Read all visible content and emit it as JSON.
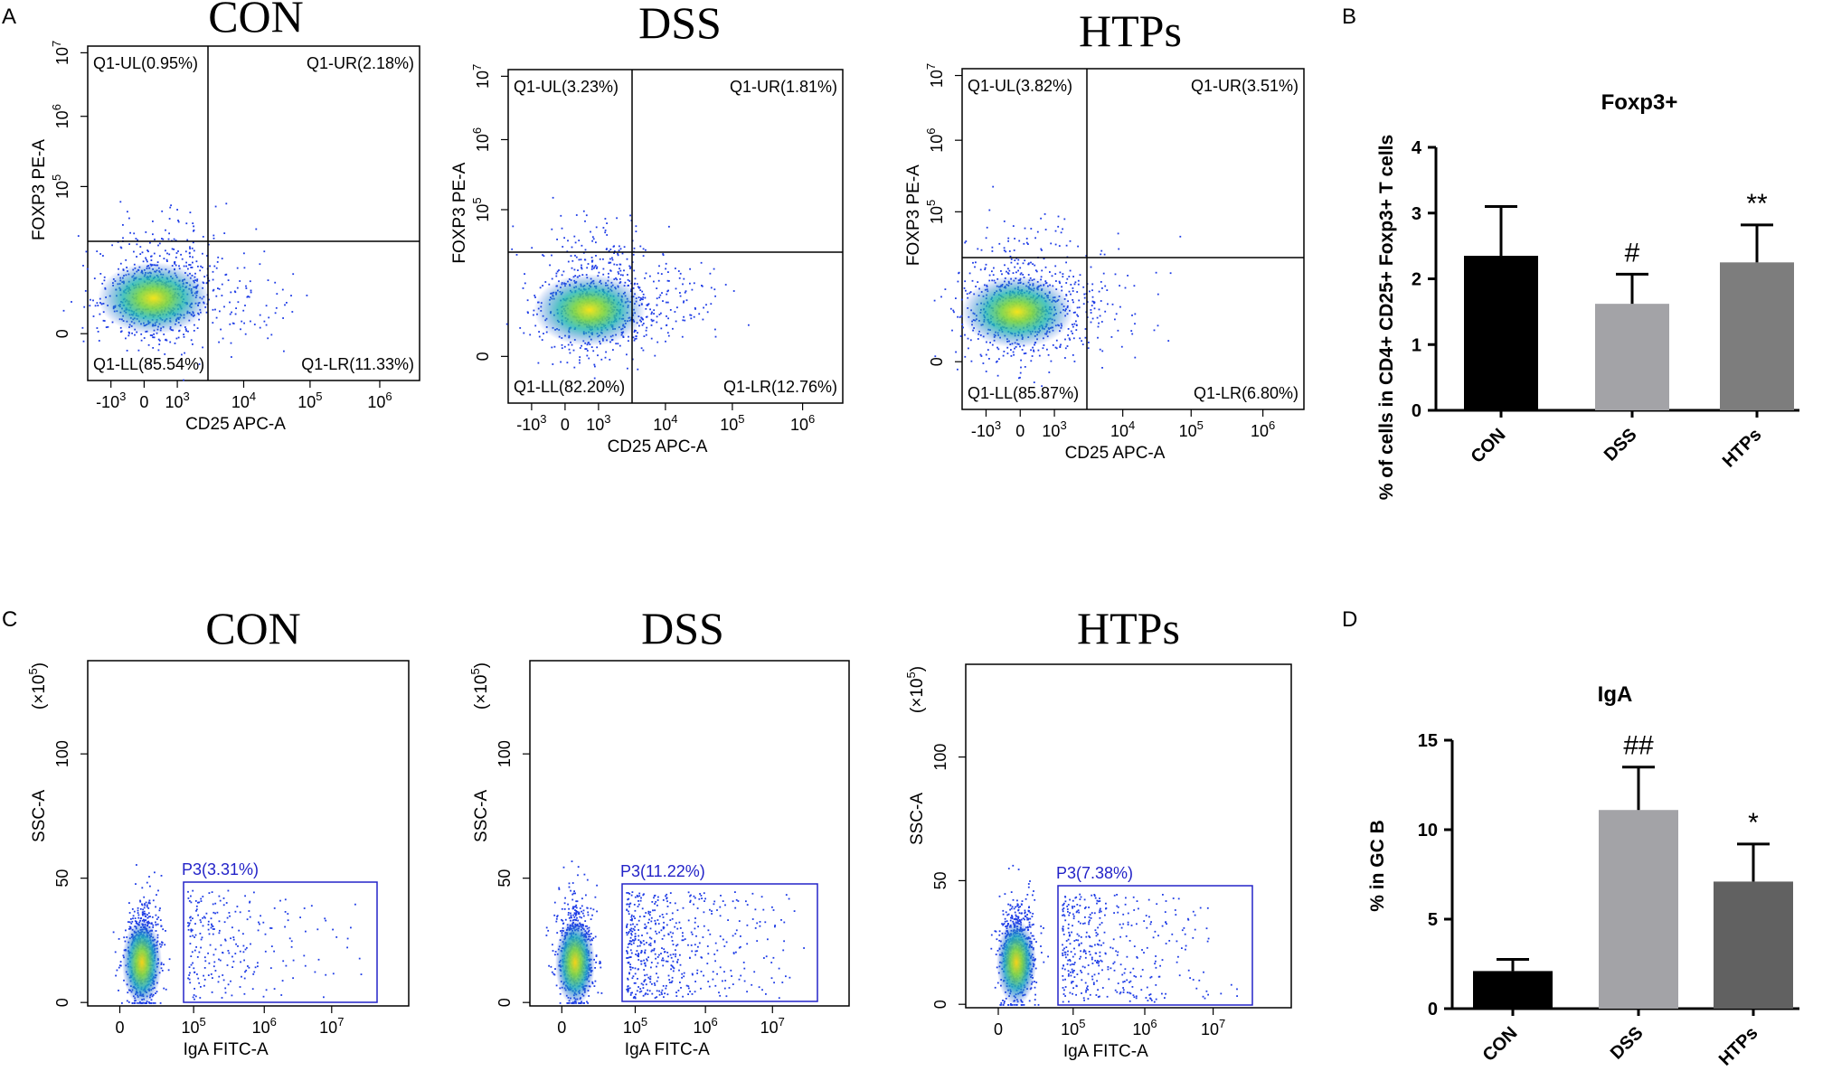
{
  "panels": {
    "A": {
      "letter": "A",
      "plots": [
        {
          "title": "CON",
          "quadrants": {
            "UL": "Q1-UL(0.95%)",
            "UR": "Q1-UR(2.18%)",
            "LL": "Q1-LL(85.54%)",
            "LR": "Q1-LR(11.33%)"
          }
        },
        {
          "title": "DSS",
          "quadrants": {
            "UL": "Q1-UL(3.23%)",
            "UR": "Q1-UR(1.81%)",
            "LL": "Q1-LL(82.20%)",
            "LR": "Q1-LR(12.76%)"
          }
        },
        {
          "title": "HTPs",
          "quadrants": {
            "UL": "Q1-UL(3.82%)",
            "UR": "Q1-UR(3.51%)",
            "LL": "Q1-LL(85.87%)",
            "LR": "Q1-LR(6.80%)"
          }
        }
      ],
      "xlabel": "CD25 APC-A",
      "ylabel": "FOXP3 PE-A",
      "xticks": [
        {
          "base": "-10",
          "exp": "3"
        },
        {
          "base": "0",
          "exp": ""
        },
        {
          "base": "10",
          "exp": "3"
        },
        {
          "base": "10",
          "exp": "4"
        },
        {
          "base": "10",
          "exp": "5"
        },
        {
          "base": "10",
          "exp": "6"
        }
      ],
      "yticks": [
        {
          "base": "0",
          "exp": ""
        },
        {
          "base": "10",
          "exp": "5"
        },
        {
          "base": "10",
          "exp": "6"
        },
        {
          "base": "10",
          "exp": "7"
        }
      ]
    },
    "C": {
      "letter": "C",
      "plots": [
        {
          "title": "CON",
          "gate": "P3(3.31%)"
        },
        {
          "title": "DSS",
          "gate": "P3(11.22%)"
        },
        {
          "title": "HTPs",
          "gate": "P3(7.38%)"
        }
      ],
      "xlabel": "IgA FITC-A",
      "ylabel": "SSC-A",
      "yunit": "(×10",
      "yunit_exp": "5",
      "yunit_close": ")",
      "xticks": [
        {
          "base": "0",
          "exp": ""
        },
        {
          "base": "10",
          "exp": "5"
        },
        {
          "base": "10",
          "exp": "6"
        },
        {
          "base": "10",
          "exp": "7"
        }
      ],
      "yticks": [
        "0",
        "50",
        "100"
      ]
    }
  },
  "chart_data": [
    {
      "panel": "B",
      "letter": "B",
      "type": "bar",
      "title": "Foxp3+",
      "ylabel": "% of cells in CD4+ CD25+ Foxp3+  T cells",
      "xlabel": "",
      "categories": [
        "CON",
        "DSS",
        "HTPs"
      ],
      "values": [
        2.35,
        1.62,
        2.25
      ],
      "errors": [
        0.75,
        0.45,
        0.57
      ],
      "significance": [
        "",
        "#",
        "**"
      ],
      "bar_colors": [
        "#000000",
        "#a3a3a7",
        "#7d7d7d"
      ],
      "ylim": [
        0,
        4
      ],
      "yticks": [
        0,
        1,
        2,
        3,
        4
      ]
    },
    {
      "panel": "D",
      "letter": "D",
      "type": "bar",
      "title": "IgA",
      "ylabel": "% in GC B",
      "xlabel": "",
      "categories": [
        "CON",
        "DSS",
        "HTPs"
      ],
      "values": [
        2.1,
        11.1,
        7.1
      ],
      "errors": [
        0.65,
        2.4,
        2.1
      ],
      "significance": [
        "",
        "##",
        "*"
      ],
      "bar_colors": [
        "#000000",
        "#a3a3a7",
        "#616161"
      ],
      "ylim": [
        0,
        15
      ],
      "yticks": [
        0,
        5,
        10,
        15
      ]
    }
  ]
}
